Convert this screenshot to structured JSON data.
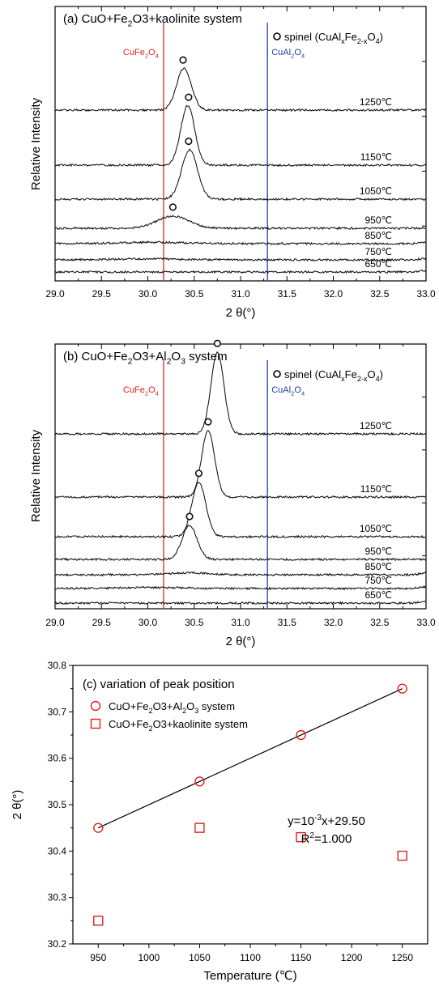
{
  "chart_data": [
    {
      "type": "line",
      "panel": "a",
      "title": "(a) CuO+Fe2O3+kaolinite system",
      "xlabel": "2 θ(°)",
      "ylabel": "Relative Intensity",
      "xlim": [
        29.0,
        33.0
      ],
      "x_ticks": [
        "29.0",
        "29.5",
        "30.0",
        "30.5",
        "31.0",
        "31.5",
        "32.0",
        "32.5",
        "33.0"
      ],
      "legend": {
        "marker": "open-circle",
        "label": "spinel (CuAlxFe2-xO4)",
        "position": "top-right"
      },
      "reference_lines": [
        {
          "label": "CuFe2O4",
          "x": 30.17,
          "color": "#e0231f"
        },
        {
          "label": "CuAl2O4",
          "x": 31.29,
          "color": "#1f3fa8"
        }
      ],
      "series": [
        {
          "name": "650℃",
          "peak_x": null,
          "peak_height": 0.0,
          "peak_width": 0.12
        },
        {
          "name": "750℃",
          "peak_x": 29.95,
          "peak_height": 0.03,
          "peak_width": 0.35
        },
        {
          "name": "850℃",
          "peak_x": 30.05,
          "peak_height": 0.04,
          "peak_width": 0.35
        },
        {
          "name": "950℃",
          "peak_x": 30.27,
          "peak_height": 0.36,
          "peak_width": 0.17
        },
        {
          "name": "1050℃",
          "peak_x": 30.45,
          "peak_height": 1.45,
          "peak_width": 0.085
        },
        {
          "name": "1150℃",
          "peak_x": 30.43,
          "peak_height": 1.75,
          "peak_width": 0.075
        },
        {
          "name": "1250℃",
          "peak_x": 30.39,
          "peak_height": 1.22,
          "peak_width": 0.08
        }
      ],
      "peak_markers_x": [
        30.38,
        30.44,
        30.44,
        30.27
      ],
      "grid": false
    },
    {
      "type": "line",
      "panel": "b",
      "title": "(b) CuO+Fe2O3+Al2O3 system",
      "xlabel": "2 θ(°)",
      "ylabel": "Relative Intensity",
      "xlim": [
        29.0,
        33.0
      ],
      "x_ticks": [
        "29.0",
        "29.5",
        "30.0",
        "30.5",
        "31.0",
        "31.5",
        "32.0",
        "32.5",
        "33.0"
      ],
      "legend": {
        "marker": "open-circle",
        "label": "spinel (CuAlxFe2-xO4)",
        "position": "top-right"
      },
      "reference_lines": [
        {
          "label": "CuFe2O4",
          "x": 30.17,
          "color": "#e0231f"
        },
        {
          "label": "CuAl2O4",
          "x": 31.29,
          "color": "#1f3fa8"
        }
      ],
      "series": [
        {
          "name": "650℃",
          "peak_x": null,
          "peak_height": 0.0,
          "peak_width": 0.12
        },
        {
          "name": "750℃",
          "peak_x": 30.05,
          "peak_height": 0.03,
          "peak_width": 0.35
        },
        {
          "name": "850℃",
          "peak_x": 30.45,
          "peak_height": 0.06,
          "peak_width": 0.2
        },
        {
          "name": "950℃",
          "peak_x": 30.45,
          "peak_height": 1.0,
          "peak_width": 0.08
        },
        {
          "name": "1050℃",
          "peak_x": 30.55,
          "peak_height": 1.6,
          "peak_width": 0.075
        },
        {
          "name": "1150℃",
          "peak_x": 30.65,
          "peak_height": 1.95,
          "peak_width": 0.07
        },
        {
          "name": "1250℃",
          "peak_x": 30.75,
          "peak_height": 2.4,
          "peak_width": 0.07
        }
      ],
      "peak_markers_x": [
        30.75,
        30.65,
        30.55,
        30.45
      ],
      "grid": false
    },
    {
      "type": "scatter",
      "panel": "c",
      "title": "(c) variation of peak position",
      "xlabel": "Temperature (℃)",
      "ylabel": "2 θ(°)",
      "xlim": [
        925,
        1275
      ],
      "ylim": [
        30.2,
        30.8
      ],
      "x_ticks": [
        "950",
        "1000",
        "1050",
        "1100",
        "1150",
        "1200",
        "1250"
      ],
      "y_ticks": [
        "30.2",
        "30.3",
        "30.4",
        "30.5",
        "30.6",
        "30.7",
        "30.8"
      ],
      "legend": {
        "position": "top-left"
      },
      "series": [
        {
          "name": "CuO+Fe2O3+Al2O3 system",
          "marker": "circle",
          "color": "#e0231f",
          "x": [
            950,
            1050,
            1150,
            1250
          ],
          "y": [
            30.45,
            30.55,
            30.65,
            30.75
          ]
        },
        {
          "name": "CuO+Fe2O3+kaolinite system",
          "marker": "square",
          "color": "#e0231f",
          "x": [
            950,
            1050,
            1150,
            1250
          ],
          "y": [
            30.25,
            30.45,
            30.43,
            30.39
          ]
        }
      ],
      "fit": {
        "equation": "y=10-3x+29.50",
        "r2": "R2=1.000",
        "slope": 0.001,
        "intercept": 29.5
      },
      "grid": false
    }
  ]
}
